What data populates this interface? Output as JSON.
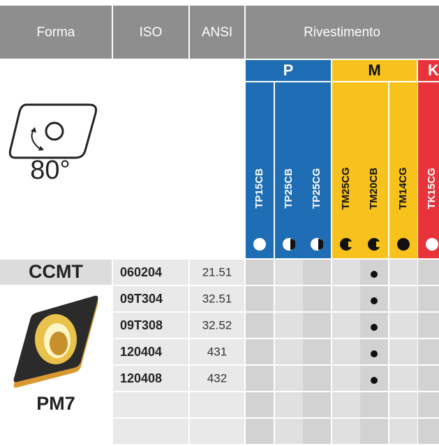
{
  "header": {
    "columns": [
      "Forma",
      "ISO",
      "ANSI",
      "Rivestimento"
    ]
  },
  "groups": [
    "P",
    "M",
    "K"
  ],
  "grades": [
    "TP15CB",
    "TP25CB",
    "TP25CG",
    "TM25CG",
    "TM20CB",
    "TM14CG",
    "TK15CG"
  ],
  "angle": "80°",
  "shape": "CCMT",
  "chipbreaker": "PM7",
  "rows": [
    [
      "060204",
      "21.51"
    ],
    [
      "09T304",
      "32.51"
    ],
    [
      "09T308",
      "32.52"
    ],
    [
      "120404",
      "431"
    ],
    [
      "120408",
      "432"
    ]
  ]
}
